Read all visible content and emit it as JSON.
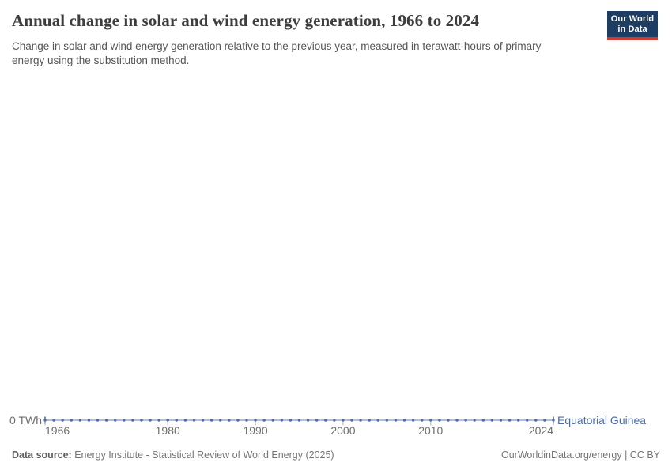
{
  "header": {
    "title": "Annual change in solar and wind energy generation, 1966 to 2024",
    "subtitle": "Change in solar and wind energy generation relative to the previous year, measured in terawatt-hours of primary energy using the substitution method.",
    "logo": {
      "line1": "Our World",
      "line2": "in Data",
      "bg_color": "#1d3d63",
      "stripe_color": "#d13b32"
    }
  },
  "chart_data": {
    "type": "line",
    "title": "Annual change in solar and wind energy generation, 1966 to 2024",
    "x": [
      1966,
      1967,
      1968,
      1969,
      1970,
      1971,
      1972,
      1973,
      1974,
      1975,
      1976,
      1977,
      1978,
      1979,
      1980,
      1981,
      1982,
      1983,
      1984,
      1985,
      1986,
      1987,
      1988,
      1989,
      1990,
      1991,
      1992,
      1993,
      1994,
      1995,
      1996,
      1997,
      1998,
      1999,
      2000,
      2001,
      2002,
      2003,
      2004,
      2005,
      2006,
      2007,
      2008,
      2009,
      2010,
      2011,
      2012,
      2013,
      2014,
      2015,
      2016,
      2017,
      2018,
      2019,
      2020,
      2021,
      2022,
      2023,
      2024
    ],
    "series": [
      {
        "name": "Equatorial Guinea",
        "color": "#4c6ba8",
        "values": [
          0,
          0,
          0,
          0,
          0,
          0,
          0,
          0,
          0,
          0,
          0,
          0,
          0,
          0,
          0,
          0,
          0,
          0,
          0,
          0,
          0,
          0,
          0,
          0,
          0,
          0,
          0,
          0,
          0,
          0,
          0,
          0,
          0,
          0,
          0,
          0,
          0,
          0,
          0,
          0,
          0,
          0,
          0,
          0,
          0,
          0,
          0,
          0,
          0,
          0,
          0,
          0,
          0,
          0,
          0,
          0,
          0,
          0,
          0
        ]
      }
    ],
    "xlim": [
      1966,
      2024
    ],
    "x_ticks": [
      1966,
      1980,
      1990,
      2000,
      2010,
      2024
    ],
    "x_tick_labels": [
      "1966",
      "1980",
      "1990",
      "2000",
      "2010",
      "2024"
    ],
    "y_ticks": [
      0
    ],
    "y_tick_labels": [
      "0 TWh"
    ],
    "unit": "TWh",
    "xlabel": "",
    "ylabel": "",
    "grid": false,
    "legend": "end-of-line label",
    "markers": "point per year"
  },
  "footer": {
    "source_label": "Data source:",
    "source_text": " Energy Institute - Statistical Review of World Energy (2025)",
    "credit": "OurWorldinData.org/energy | CC BY"
  },
  "colors": {
    "series_blue": "#4c6ba8",
    "logo_navy": "#1d3d63",
    "logo_red": "#d13b32",
    "title_gray": "#3d3d3d"
  }
}
